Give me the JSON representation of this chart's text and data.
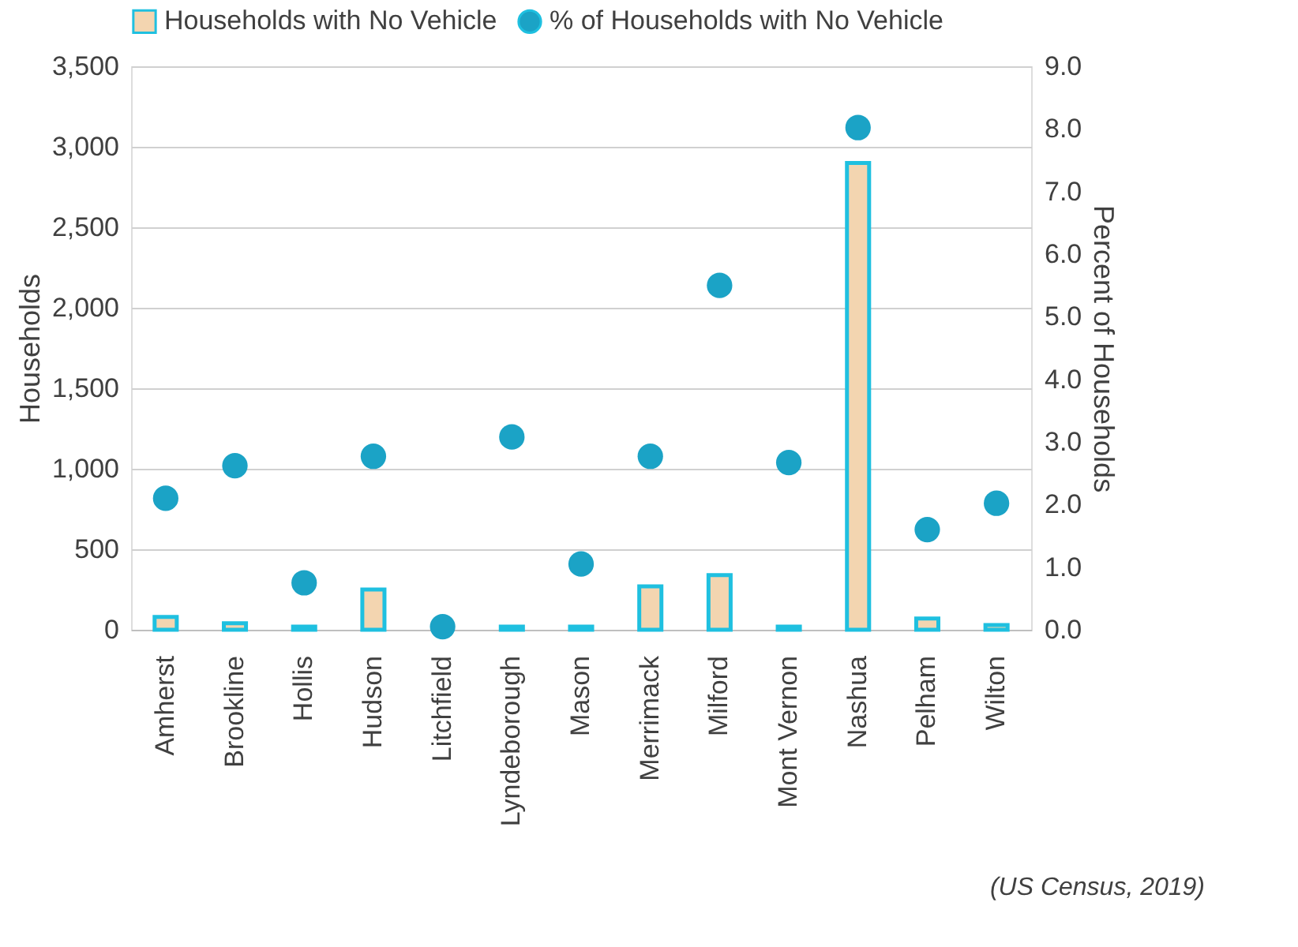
{
  "chart_data": {
    "type": "bar",
    "categories": [
      "Amherst",
      "Brookline",
      "Hollis",
      "Hudson",
      "Litchfield",
      "Lyndeborough",
      "Mason",
      "Merrimack",
      "Milford",
      "Mont Vernon",
      "Nashua",
      "Pelham",
      "Wilton"
    ],
    "ylabel": "Households",
    "y2label": "Percent of Households",
    "series": [
      {
        "name": "Households with No Vehicle",
        "color": "#f3d5b0",
        "values": [
          80,
          40,
          20,
          250,
          null,
          20,
          20,
          270,
          340,
          20,
          2900,
          70,
          30
        ]
      },
      {
        "name": "% of Households with No Vehicle",
        "type": "scatter",
        "axis": "y2",
        "color": "#1ba3c6",
        "values": [
          2.1,
          2.62,
          0.75,
          2.77,
          0.05,
          3.08,
          1.05,
          2.77,
          5.5,
          2.67,
          8.02,
          1.6,
          2.02
        ]
      }
    ],
    "ylim": [
      0,
      3500
    ],
    "yticks": [
      {
        "value": 0,
        "label": "0"
      },
      {
        "value": 500,
        "label": "500"
      },
      {
        "value": 1000,
        "label": "1,000"
      },
      {
        "value": 1500,
        "label": "1,500"
      },
      {
        "value": 2000,
        "label": "2,000"
      },
      {
        "value": 2500,
        "label": "2,500"
      },
      {
        "value": 3000,
        "label": "3,000"
      },
      {
        "value": 3500,
        "label": "3,500"
      }
    ],
    "y2lim": [
      0,
      9
    ],
    "y2ticks": [
      {
        "value": 0,
        "label": "0.0"
      },
      {
        "value": 1,
        "label": "1.0"
      },
      {
        "value": 2,
        "label": "2.0"
      },
      {
        "value": 3,
        "label": "3.0"
      },
      {
        "value": 4,
        "label": "4.0"
      },
      {
        "value": 5,
        "label": "5.0"
      },
      {
        "value": 6,
        "label": "6.0"
      },
      {
        "value": 7,
        "label": "7.0"
      },
      {
        "value": 8,
        "label": "8.0"
      },
      {
        "value": 9,
        "label": "9.0"
      }
    ],
    "grid": "y",
    "legend": "top",
    "marker": "circle",
    "annotations": [
      "(US Census, 2019)"
    ]
  }
}
